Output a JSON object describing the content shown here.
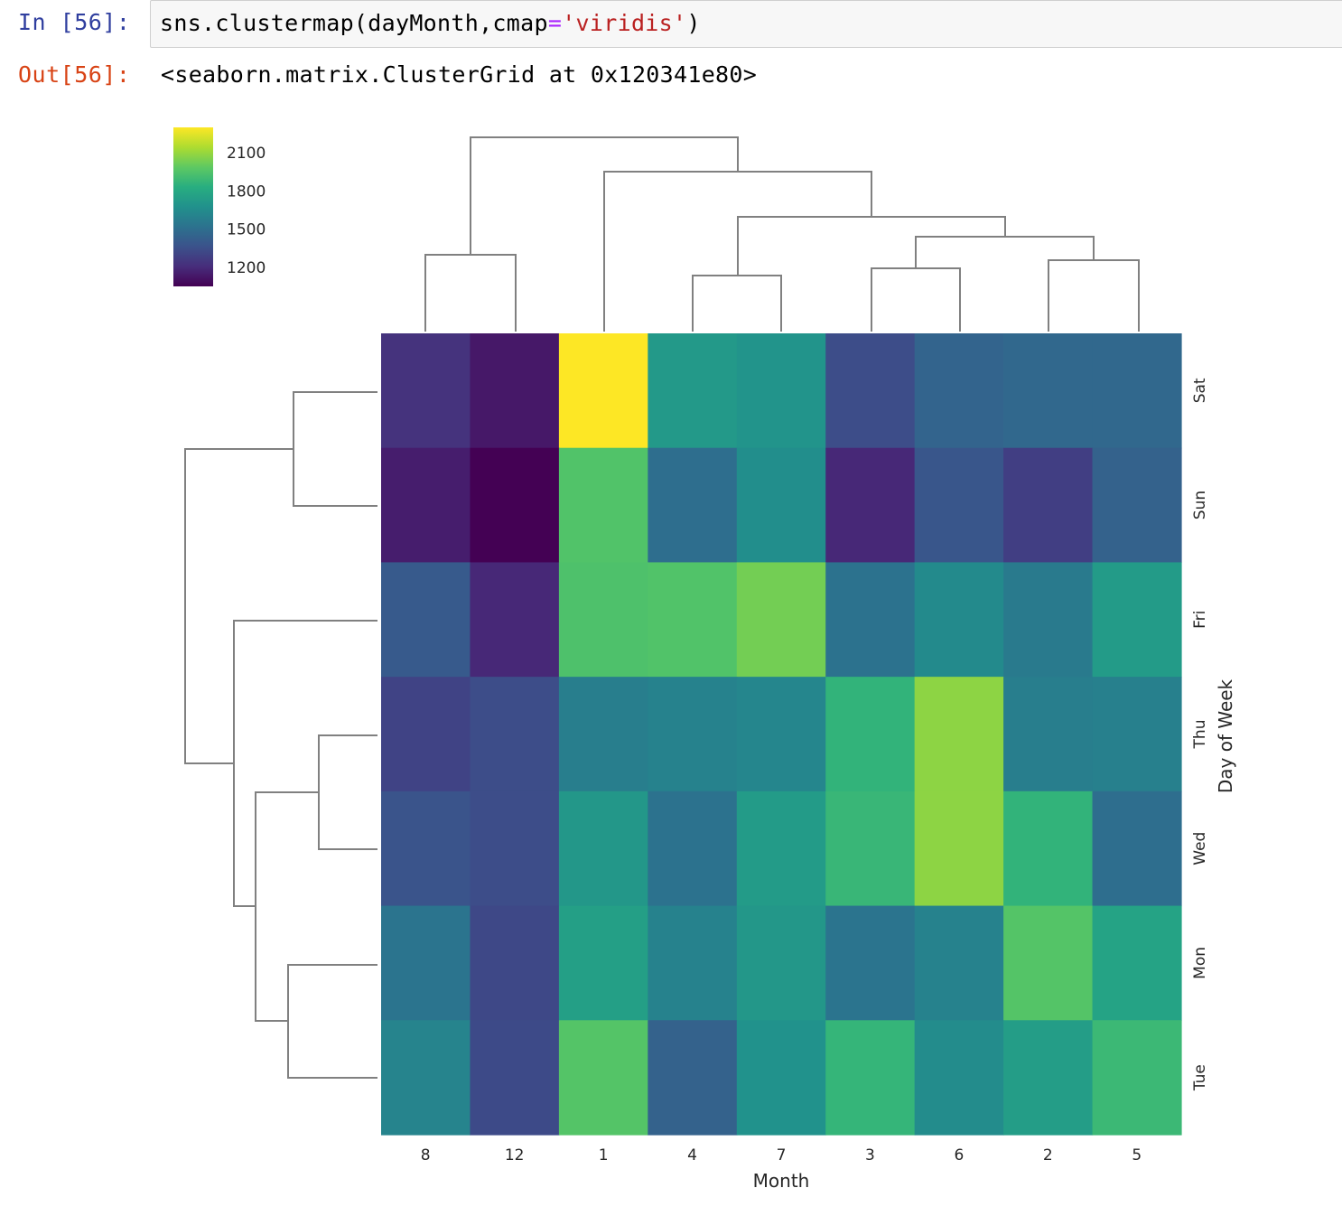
{
  "notebook": {
    "input_prompt": "In [56]:",
    "output_prompt": "Out[56]:",
    "code": {
      "func": "sns.clustermap(dayMonth,cmap",
      "op": "=",
      "str": "'viridis'",
      "close": ")"
    },
    "output_text": "<seaborn.matrix.ClusterGrid at 0x120341e80>"
  },
  "chart_data": {
    "type": "heatmap",
    "colormap": "viridis",
    "xlabel": "Month",
    "ylabel": "Day of Week",
    "columns": [
      "8",
      "12",
      "1",
      "4",
      "7",
      "3",
      "6",
      "2",
      "5"
    ],
    "rows": [
      "Sat",
      "Sun",
      "Fri",
      "Thu",
      "Wed",
      "Mon",
      "Tue"
    ],
    "values": [
      [
        1230,
        1130,
        2300,
        1720,
        1690,
        1340,
        1450,
        1470,
        1470
      ],
      [
        1150,
        1050,
        1950,
        1500,
        1660,
        1190,
        1380,
        1280,
        1440
      ],
      [
        1400,
        1190,
        1940,
        1950,
        2030,
        1520,
        1640,
        1560,
        1730
      ],
      [
        1300,
        1340,
        1580,
        1600,
        1620,
        1860,
        2080,
        1580,
        1590
      ],
      [
        1370,
        1340,
        1710,
        1520,
        1730,
        1880,
        2080,
        1860,
        1500
      ],
      [
        1530,
        1320,
        1750,
        1600,
        1710,
        1530,
        1600,
        1960,
        1770
      ],
      [
        1610,
        1330,
        1960,
        1440,
        1680,
        1870,
        1650,
        1740,
        1890
      ]
    ],
    "colorbar": {
      "min": 1050,
      "max": 2300,
      "ticks": [
        "2100",
        "1800",
        "1500",
        "1200"
      ],
      "tick_values": [
        2100,
        1800,
        1500,
        1200
      ]
    },
    "grid": false
  }
}
